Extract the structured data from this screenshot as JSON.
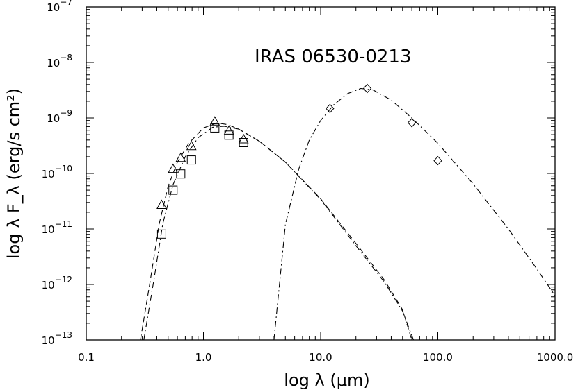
{
  "chart_data": {
    "type": "scatter",
    "title": "IRAS 06530-0213",
    "xlabel": "log λ (μm)",
    "ylabel": "log λ F_λ (erg/s cm²)",
    "xscale": "log",
    "yscale": "log",
    "xlim": [
      0.1,
      1000.0
    ],
    "ylim": [
      1e-13,
      1e-07
    ],
    "x_ticks": [
      {
        "value": 0.1,
        "label": "0.1"
      },
      {
        "value": 1.0,
        "label": "1.0"
      },
      {
        "value": 10.0,
        "label": "10.0"
      },
      {
        "value": 100.0,
        "label": "100.0"
      },
      {
        "value": 1000.0,
        "label": "1000.0"
      }
    ],
    "y_ticks": [
      {
        "value": 1e-13,
        "base": "10",
        "exp": "−13"
      },
      {
        "value": 1e-12,
        "base": "10",
        "exp": "−12"
      },
      {
        "value": 1e-11,
        "base": "10",
        "exp": "−11"
      },
      {
        "value": 1e-10,
        "base": "10",
        "exp": "−10"
      },
      {
        "value": 1e-09,
        "base": "10",
        "exp": "−9"
      },
      {
        "value": 1e-08,
        "base": "10",
        "exp": "−8"
      },
      {
        "value": 1e-07,
        "base": "10",
        "exp": "−7"
      }
    ],
    "grid": false,
    "series": [
      {
        "marker": "triangle",
        "points": [
          {
            "x": 0.44,
            "y": 2.7e-11
          },
          {
            "x": 0.55,
            "y": 1.2e-10
          },
          {
            "x": 0.64,
            "y": 1.9e-10
          },
          {
            "x": 0.79,
            "y": 3.1e-10
          },
          {
            "x": 1.25,
            "y": 8.6e-10
          },
          {
            "x": 1.65,
            "y": 5.9e-10
          },
          {
            "x": 2.2,
            "y": 4.1e-10
          }
        ]
      },
      {
        "marker": "square",
        "points": [
          {
            "x": 0.44,
            "y": 8.1e-12
          },
          {
            "x": 0.55,
            "y": 5e-11
          },
          {
            "x": 0.64,
            "y": 9.8e-11
          },
          {
            "x": 0.79,
            "y": 1.75e-10
          },
          {
            "x": 1.25,
            "y": 6.6e-10
          },
          {
            "x": 1.65,
            "y": 4.9e-10
          },
          {
            "x": 2.2,
            "y": 3.6e-10
          }
        ]
      },
      {
        "marker": "diamond",
        "points": [
          {
            "x": 12.0,
            "y": 1.48e-09
          },
          {
            "x": 25.0,
            "y": 3.4e-09
          },
          {
            "x": 60.0,
            "y": 8.2e-10
          },
          {
            "x": 100.0,
            "y": 1.7e-10
          }
        ]
      }
    ],
    "curves": [
      {
        "style": "dashed",
        "points": [
          [
            0.29,
            1e-13
          ],
          [
            0.35,
            1.1e-12
          ],
          [
            0.42,
            1.25e-11
          ],
          [
            0.5,
            5.9e-11
          ],
          [
            0.6,
            1.6e-10
          ],
          [
            0.75,
            3.5e-10
          ],
          [
            1.0,
            6.6e-10
          ],
          [
            1.3,
            8.1e-10
          ],
          [
            1.6,
            7.6e-10
          ],
          [
            2.0,
            6.3e-10
          ],
          [
            3.0,
            3.8e-10
          ],
          [
            5.0,
            1.6e-10
          ],
          [
            10.0,
            3.5e-11
          ],
          [
            20.0,
            5.5e-12
          ],
          [
            35.0,
            1.2e-12
          ],
          [
            50.0,
            3.5e-13
          ],
          [
            60.0,
            1e-13
          ]
        ]
      },
      {
        "style": "dash-dot",
        "points": [
          [
            0.31,
            1e-13
          ],
          [
            0.38,
            1.3e-12
          ],
          [
            0.45,
            1.25e-11
          ],
          [
            0.55,
            6.3e-11
          ],
          [
            0.7,
            2e-10
          ],
          [
            0.9,
            4.4e-10
          ],
          [
            1.2,
            6.8e-10
          ],
          [
            1.5,
            7.1e-10
          ],
          [
            2.0,
            6.3e-10
          ],
          [
            3.0,
            3.8e-10
          ],
          [
            5.0,
            1.6e-10
          ],
          [
            10.0,
            3.4e-11
          ],
          [
            20.0,
            5e-12
          ],
          [
            35.0,
            1.1e-12
          ],
          [
            50.0,
            3.3e-13
          ],
          [
            62.0,
            1e-13
          ]
        ]
      },
      {
        "style": "dash-dot",
        "points": [
          [
            4.0,
            1e-13
          ],
          [
            5.0,
            1.2e-11
          ],
          [
            6.5,
            1.2e-10
          ],
          [
            8.0,
            4e-10
          ],
          [
            10.0,
            9e-10
          ],
          [
            13.0,
            1.75e-09
          ],
          [
            17.0,
            2.75e-09
          ],
          [
            22.0,
            3.4e-09
          ],
          [
            28.0,
            3.2e-09
          ],
          [
            40.0,
            2.1e-09
          ],
          [
            60.0,
            1e-09
          ],
          [
            100.0,
            3.5e-10
          ],
          [
            200.0,
            6.5e-11
          ],
          [
            400.0,
            1e-11
          ],
          [
            700.0,
            1.9e-12
          ],
          [
            1000.0,
            6.3e-13
          ]
        ]
      }
    ]
  }
}
